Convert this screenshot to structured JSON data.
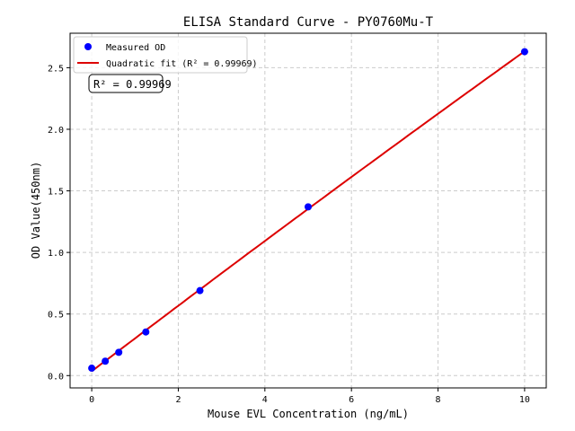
{
  "chart_data": {
    "type": "scatter",
    "title": "ELISA Standard Curve - PY0760Mu-T",
    "xlabel": "Mouse EVL Concentration (ng/mL)",
    "ylabel": "OD Value(450nm)",
    "xlim": [
      -0.5,
      10.5
    ],
    "ylim": [
      -0.1,
      2.78
    ],
    "xticks": [
      0,
      2,
      4,
      6,
      8,
      10
    ],
    "yticks": [
      0.0,
      0.5,
      1.0,
      1.5,
      2.0,
      2.5
    ],
    "xtick_labels": [
      "0",
      "2",
      "4",
      "6",
      "8",
      "10"
    ],
    "ytick_labels": [
      "0.0",
      "0.5",
      "1.0",
      "1.5",
      "2.0",
      "2.5"
    ],
    "grid": true,
    "legend_position": "top-left",
    "series": [
      {
        "name": "Measured OD",
        "kind": "points",
        "color": "#0000ff",
        "x": [
          0,
          0.3125,
          0.625,
          1.25,
          2.5,
          5,
          10
        ],
        "y": [
          0.06,
          0.117,
          0.189,
          0.354,
          0.69,
          1.37,
          2.63
        ]
      },
      {
        "name": "Quadratic fit (R² = 0.99969)",
        "kind": "fit",
        "degree": 2,
        "color": "#dd0000"
      }
    ],
    "annotation": "R² = 0.99969"
  }
}
